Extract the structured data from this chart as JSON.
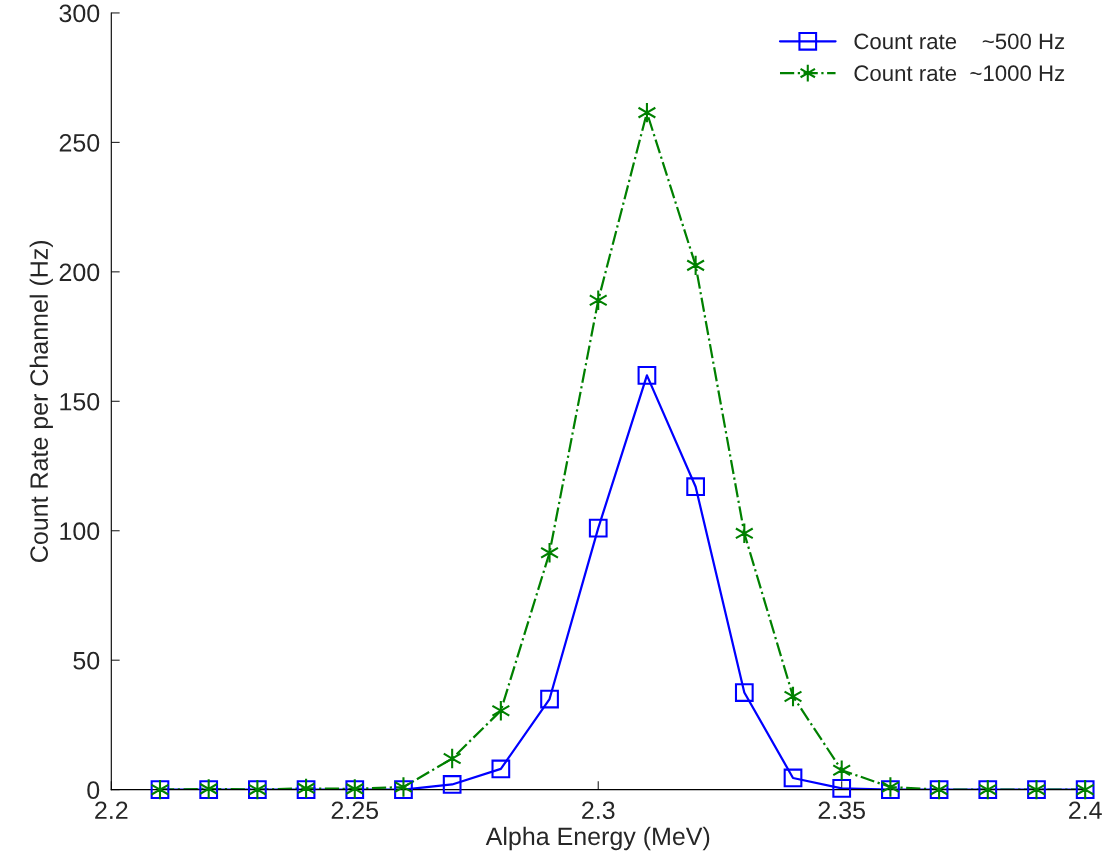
{
  "chart_data": {
    "type": "line",
    "xlabel": "Alpha Energy (MeV)",
    "ylabel": "Count Rate per Channel (Hz)",
    "x": [
      2.21,
      2.22,
      2.23,
      2.24,
      2.25,
      2.26,
      2.27,
      2.28,
      2.29,
      2.3,
      2.31,
      2.32,
      2.33,
      2.34,
      2.35,
      2.36,
      2.37,
      2.38,
      2.39,
      2.4
    ],
    "series": [
      {
        "name": "Count rate    ~500 Hz",
        "color": "#0000ff",
        "marker": "square",
        "line_style": "solid",
        "values": [
          0,
          0,
          0,
          0,
          0,
          0,
          2,
          8,
          35,
          101,
          160,
          117,
          37.5,
          4.5,
          0.5,
          0,
          0,
          0,
          0,
          0
        ]
      },
      {
        "name": "Count rate  ~1000 Hz",
        "color": "#008000",
        "marker": "cross",
        "line_style": "dashdot",
        "values": [
          0,
          0.3,
          0,
          0.5,
          0.3,
          1,
          12,
          30.5,
          91.5,
          189,
          261.5,
          202.5,
          99,
          36,
          7.5,
          1,
          0,
          0,
          0,
          0
        ]
      }
    ],
    "xlim": [
      2.2,
      2.4
    ],
    "xticks": [
      2.2,
      2.25,
      2.3,
      2.35,
      2.4
    ],
    "ylim": [
      0,
      300
    ],
    "yticks": [
      0,
      50,
      100,
      150,
      200,
      250,
      300
    ],
    "grid": false,
    "legend": "top right"
  }
}
